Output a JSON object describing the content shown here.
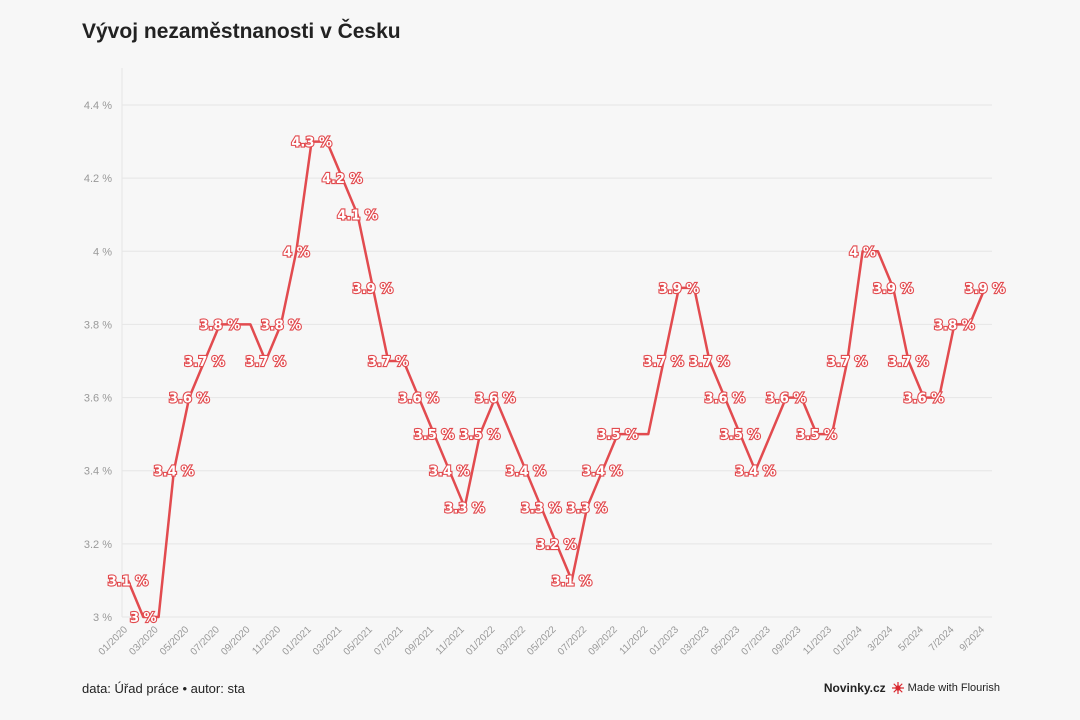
{
  "title": "Vývoj nezaměstnanosti v Česku",
  "footer": {
    "source": "data: Úřad práce • autor: sta",
    "brand": "Novinky.cz",
    "made_with": "Made with Flourish"
  },
  "colors": {
    "line": "#e24b4f",
    "grid": "#e6e6e6",
    "tick": "#999999",
    "label_fill": "#ffffff"
  },
  "chart_data": {
    "type": "line",
    "title": "Vývoj nezaměstnanosti v Česku",
    "ylim": [
      3.0,
      4.45
    ],
    "y_ticks": [
      3.0,
      3.2,
      3.4,
      3.6,
      3.8,
      4.0,
      4.2,
      4.4
    ],
    "y_tick_labels": [
      "3 %",
      "3.2 %",
      "3.4 %",
      "3.6 %",
      "3.8 %",
      "4 %",
      "4.2 %",
      "4.4 %"
    ],
    "x_tick_labels": [
      "01/2020",
      "03/2020",
      "05/2020",
      "07/2020",
      "09/2020",
      "11/2020",
      "01/2021",
      "03/2021",
      "05/2021",
      "07/2021",
      "09/2021",
      "11/2021",
      "01/2022",
      "03/2022",
      "05/2022",
      "07/2022",
      "09/2022",
      "11/2022",
      "01/2023",
      "03/2023",
      "05/2023",
      "07/2023",
      "09/2023",
      "11/2023",
      "01/2024",
      "3/2024",
      "5/2024",
      "7/2024",
      "9/2024"
    ],
    "grid": true,
    "series": [
      {
        "values": [
          3.1,
          3.0,
          3.0,
          3.4,
          3.6,
          3.7,
          3.8,
          3.8,
          3.8,
          3.7,
          3.8,
          4.0,
          4.3,
          4.3,
          4.2,
          4.1,
          3.9,
          3.7,
          3.7,
          3.6,
          3.5,
          3.4,
          3.3,
          3.5,
          3.6,
          3.5,
          3.4,
          3.3,
          3.2,
          3.1,
          3.3,
          3.4,
          3.5,
          3.5,
          3.5,
          3.7,
          3.9,
          3.9,
          3.7,
          3.6,
          3.5,
          3.4,
          3.5,
          3.6,
          3.6,
          3.5,
          3.5,
          3.7,
          4.0,
          4.0,
          3.9,
          3.7,
          3.6,
          3.6,
          3.8,
          3.8,
          3.9
        ],
        "data_labels": [
          "3.1 %",
          "3 %",
          "",
          "3.4 %",
          "3.6 %",
          "3.7 %",
          "3.8 %",
          "",
          "",
          "3.7 %",
          "3.8 %",
          "4 %",
          "4.3 %",
          "",
          "4.2 %",
          "4.1 %",
          "3.9 %",
          "3.7 %",
          "",
          "3.6 %",
          "3.5 %",
          "3.4 %",
          "3.3 %",
          "3.5 %",
          "3.6 %",
          "",
          "3.4 %",
          "3.3 %",
          "3.2 %",
          "3.1 %",
          "3.3 %",
          "3.4 %",
          "3.5 %",
          "",
          "",
          "3.7 %",
          "3.9 %",
          "",
          "3.7 %",
          "3.6 %",
          "3.5 %",
          "3.4 %",
          "",
          "3.6 %",
          "",
          "3.5 %",
          "",
          "3.7 %",
          "4 %",
          "",
          "3.9 %",
          "3.7 %",
          "3.6 %",
          "",
          "3.8 %",
          "",
          "3.9 %"
        ]
      }
    ]
  }
}
